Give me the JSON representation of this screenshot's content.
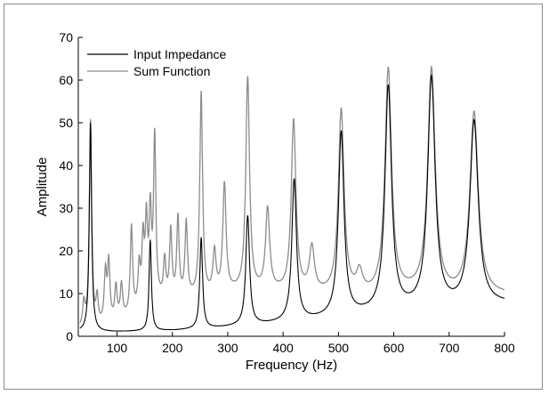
{
  "chart_data": {
    "type": "line",
    "xlabel": "Frequency (Hz)",
    "ylabel": "Amplitude",
    "xlim": [
      30,
      800
    ],
    "ylim": [
      0,
      70
    ],
    "xticks": [
      100,
      200,
      300,
      400,
      500,
      600,
      700,
      800
    ],
    "yticks": [
      0,
      10,
      20,
      30,
      40,
      50,
      60,
      70
    ],
    "grid": false,
    "legend_position": "top-left",
    "series": [
      {
        "name": "Input Impedance",
        "color": "#000000",
        "peaks": [
          {
            "f": 52,
            "a": 50
          },
          {
            "f": 160,
            "a": 22.5
          },
          {
            "f": 252,
            "a": 23
          },
          {
            "f": 336,
            "a": 28
          },
          {
            "f": 420,
            "a": 36.5
          },
          {
            "f": 505,
            "a": 47.5
          },
          {
            "f": 590,
            "a": 58
          },
          {
            "f": 668,
            "a": 60
          },
          {
            "f": 745,
            "a": 50
          }
        ],
        "minima": [
          {
            "f": 100,
            "a": 1
          },
          {
            "f": 205,
            "a": 1.3
          },
          {
            "f": 292,
            "a": 2
          },
          {
            "f": 376,
            "a": 2.8
          },
          {
            "f": 462,
            "a": 3.8
          },
          {
            "f": 548,
            "a": 5
          },
          {
            "f": 628,
            "a": 6
          },
          {
            "f": 708,
            "a": 6.5
          },
          {
            "f": 800,
            "a": 7.5
          }
        ]
      },
      {
        "name": "Sum Function",
        "color": "#8c8c8c",
        "peaks": [
          {
            "f": 40,
            "a": 7
          },
          {
            "f": 52,
            "a": 50
          },
          {
            "f": 64,
            "a": 8
          },
          {
            "f": 79,
            "a": 14
          },
          {
            "f": 85,
            "a": 16.5
          },
          {
            "f": 98,
            "a": 11
          },
          {
            "f": 108,
            "a": 11.5
          },
          {
            "f": 126,
            "a": 25
          },
          {
            "f": 140,
            "a": 15
          },
          {
            "f": 147,
            "a": 21
          },
          {
            "f": 153,
            "a": 25
          },
          {
            "f": 160,
            "a": 27
          },
          {
            "f": 168,
            "a": 45.5
          },
          {
            "f": 186,
            "a": 17
          },
          {
            "f": 197,
            "a": 24
          },
          {
            "f": 210,
            "a": 27
          },
          {
            "f": 225,
            "a": 26
          },
          {
            "f": 252,
            "a": 56.5
          },
          {
            "f": 276,
            "a": 19
          },
          {
            "f": 294,
            "a": 35
          },
          {
            "f": 336,
            "a": 60
          },
          {
            "f": 372,
            "a": 29
          },
          {
            "f": 419,
            "a": 50
          },
          {
            "f": 452,
            "a": 20
          },
          {
            "f": 505,
            "a": 52.5
          },
          {
            "f": 538,
            "a": 14
          },
          {
            "f": 590,
            "a": 62
          },
          {
            "f": 668,
            "a": 62
          },
          {
            "f": 745,
            "a": 52
          }
        ],
        "minima": [
          {
            "f": 58,
            "a": 1.5
          },
          {
            "f": 115,
            "a": 4
          },
          {
            "f": 178,
            "a": 8
          },
          {
            "f": 265,
            "a": 9
          },
          {
            "f": 310,
            "a": 10
          },
          {
            "f": 357,
            "a": 10
          },
          {
            "f": 390,
            "a": 10
          },
          {
            "f": 465,
            "a": 9.5
          },
          {
            "f": 560,
            "a": 9
          },
          {
            "f": 630,
            "a": 9.5
          },
          {
            "f": 710,
            "a": 9
          },
          {
            "f": 800,
            "a": 9.5
          }
        ]
      }
    ]
  }
}
